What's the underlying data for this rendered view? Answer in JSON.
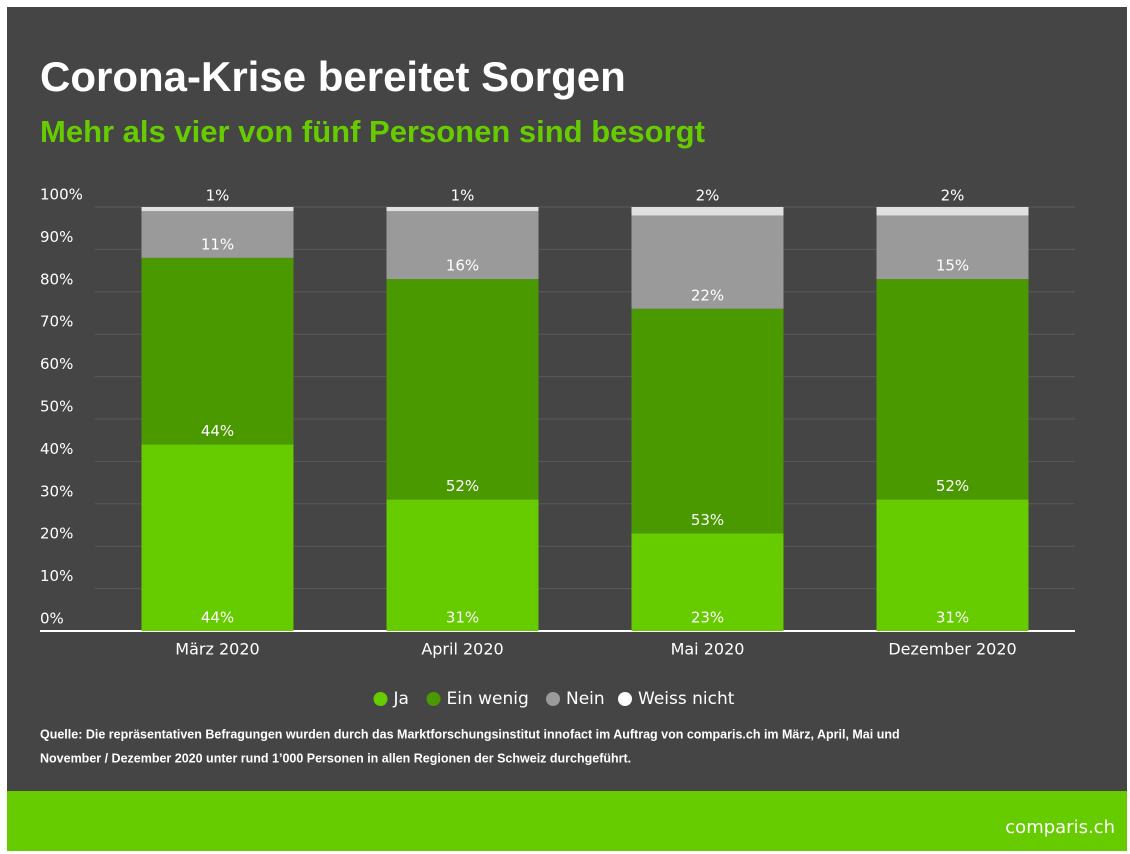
{
  "chart_data": {
    "type": "stacked_bar",
    "title": "Corona-Krise bereitet Sorgen",
    "subtitle": "Mehr als vier von fünf Personen sind besorgt",
    "categories": [
      "März 2020",
      "April 2020",
      "Mai 2020",
      "Dezember 2020"
    ],
    "series": [
      {
        "name": "Ja",
        "color": "#66cc00",
        "values": [
          44,
          31,
          23,
          31
        ],
        "value_labels": [
          "44%",
          "31%",
          "23%",
          "31%"
        ]
      },
      {
        "name": "Ein wenig",
        "color": "#4a9900",
        "values": [
          44,
          52,
          53,
          52
        ],
        "value_labels": [
          "44%",
          "52%",
          "53%",
          "52%"
        ]
      },
      {
        "name": "Nein",
        "color": "#9a9a9a",
        "values": [
          11,
          16,
          22,
          15
        ],
        "value_labels": [
          "11%",
          "16%",
          "22%",
          "15%"
        ]
      },
      {
        "name": "Weiss nicht",
        "color": "#e0e0e0",
        "values": [
          1,
          1,
          2,
          2
        ],
        "value_labels": [
          "1%",
          "1%",
          "2%",
          "2%"
        ]
      }
    ],
    "ylim": [
      0,
      100
    ],
    "yticks": [
      {
        "value": 0,
        "label": "0%"
      },
      {
        "value": 10,
        "label": "10%"
      },
      {
        "value": 20,
        "label": "20%"
      },
      {
        "value": 30,
        "label": "30%"
      },
      {
        "value": 40,
        "label": "40%"
      },
      {
        "value": 50,
        "label": "50%"
      },
      {
        "value": 60,
        "label": "60%"
      },
      {
        "value": 70,
        "label": "70%"
      },
      {
        "value": 80,
        "label": "80%"
      },
      {
        "value": 90,
        "label": "90%"
      },
      {
        "value": 100,
        "label": "100%"
      }
    ],
    "grid": true,
    "legend": "bottom",
    "source": "Quelle: Die repräsentativen Befragungen wurden durch das Marktforschungsinstitut innofact im Auftrag von comparis.ch im März, April, Mai und",
    "source_line2": "November / Dezember 2020 unter rund 1’000 Personen in allen Regionen der Schweiz durchgeführt.",
    "brand": "comparis.ch"
  }
}
